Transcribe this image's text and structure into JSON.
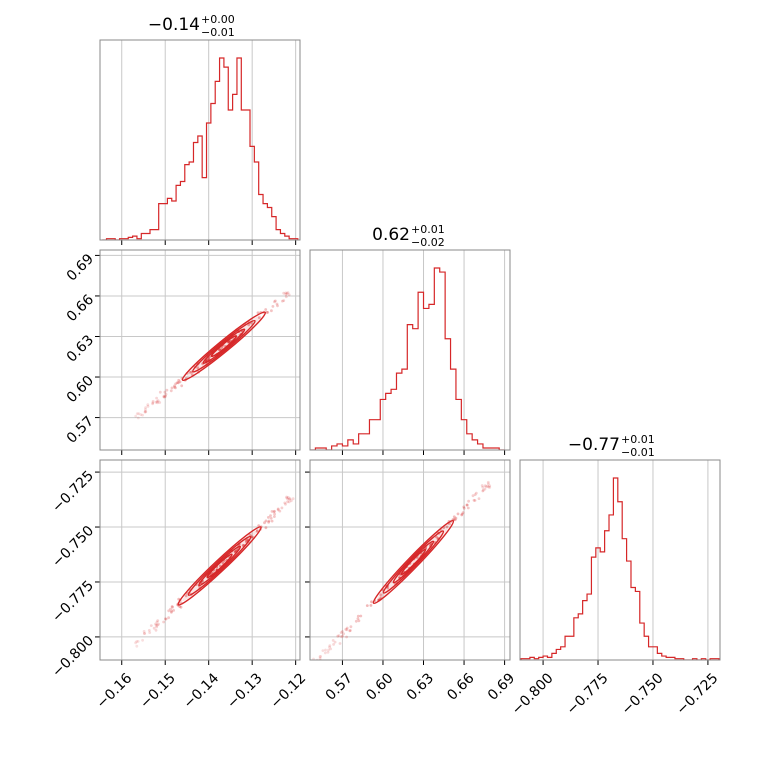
{
  "chart_data": {
    "type": "corner",
    "color": "#d62728",
    "grid": true,
    "parameters": [
      {
        "title": {
          "value": "−0.14",
          "upper": "+0.00",
          "lower": "−0.01"
        },
        "range": [
          -0.165,
          -0.119
        ],
        "ticks": [
          -0.16,
          -0.15,
          -0.14,
          -0.13,
          -0.12
        ],
        "tick_labels": [
          "−0.16",
          "−0.15",
          "−0.14",
          "−0.13",
          "−0.12"
        ],
        "histogram": {
          "x": [
            -0.164,
            -0.163,
            -0.162,
            -0.161,
            -0.16,
            -0.159,
            -0.158,
            -0.157,
            -0.156,
            -0.155,
            -0.154,
            -0.153,
            -0.152,
            -0.151,
            -0.15,
            -0.149,
            -0.148,
            -0.147,
            -0.146,
            -0.145,
            -0.144,
            -0.143,
            -0.142,
            -0.141,
            -0.14,
            -0.139,
            -0.138,
            -0.137,
            -0.136,
            -0.135,
            -0.134,
            -0.133,
            -0.132,
            -0.131,
            -0.13,
            -0.129,
            -0.128,
            -0.127,
            -0.126,
            -0.125,
            -0.124,
            -0.123,
            -0.122,
            -0.121,
            -0.12
          ],
          "counts": [
            0,
            1,
            1,
            0,
            1,
            1,
            2,
            3,
            1,
            5,
            5,
            8,
            8,
            28,
            28,
            32,
            30,
            42,
            45,
            58,
            60,
            75,
            80,
            48,
            90,
            105,
            122,
            140,
            133,
            100,
            112,
            140,
            100,
            100,
            72,
            60,
            35,
            28,
            25,
            18,
            8,
            5,
            3,
            1,
            1
          ]
        }
      },
      {
        "title": {
          "value": "0.62",
          "upper": "+0.01",
          "lower": "−0.02"
        },
        "range": [
          0.546,
          0.694
        ],
        "ticks": [
          0.57,
          0.6,
          0.63,
          0.66,
          0.69
        ],
        "tick_labels": [
          "0.57",
          "0.60",
          "0.63",
          "0.66",
          "0.69"
        ],
        "histogram": {
          "x": [
            0.548,
            0.552,
            0.556,
            0.56,
            0.564,
            0.568,
            0.572,
            0.576,
            0.58,
            0.584,
            0.588,
            0.592,
            0.596,
            0.6,
            0.604,
            0.608,
            0.612,
            0.616,
            0.62,
            0.624,
            0.628,
            0.632,
            0.636,
            0.64,
            0.644,
            0.648,
            0.652,
            0.656,
            0.66,
            0.664,
            0.668,
            0.672,
            0.676,
            0.68,
            0.684,
            0.688
          ],
          "counts": [
            0,
            1,
            1,
            0,
            2,
            3,
            2,
            5,
            3,
            8,
            8,
            15,
            15,
            25,
            28,
            30,
            38,
            40,
            62,
            60,
            78,
            70,
            72,
            90,
            88,
            55,
            40,
            25,
            15,
            8,
            5,
            3,
            1,
            1,
            1,
            0
          ]
        }
      },
      {
        "title": {
          "value": "−0.77",
          "upper": "+0.01",
          "lower": "−0.01"
        },
        "range": [
          -0.8105,
          -0.7195
        ],
        "ticks": [
          -0.8,
          -0.775,
          -0.75,
          -0.725
        ],
        "tick_labels": [
          "−0.800",
          "−0.775",
          "−0.750",
          "−0.725"
        ],
        "histogram": {
          "x": [
            -0.809,
            -0.807,
            -0.805,
            -0.803,
            -0.801,
            -0.799,
            -0.797,
            -0.795,
            -0.793,
            -0.791,
            -0.789,
            -0.787,
            -0.785,
            -0.783,
            -0.781,
            -0.779,
            -0.777,
            -0.775,
            -0.773,
            -0.771,
            -0.769,
            -0.767,
            -0.765,
            -0.763,
            -0.761,
            -0.759,
            -0.757,
            -0.755,
            -0.753,
            -0.751,
            -0.749,
            -0.747,
            -0.745,
            -0.743,
            -0.741,
            -0.739,
            -0.737,
            -0.735,
            -0.733,
            -0.731,
            -0.729,
            -0.727,
            -0.725,
            -0.723,
            -0.721
          ],
          "counts": [
            1,
            1,
            2,
            1,
            2,
            3,
            2,
            5,
            8,
            10,
            18,
            18,
            32,
            35,
            45,
            50,
            78,
            85,
            82,
            98,
            110,
            138,
            120,
            92,
            75,
            55,
            52,
            28,
            18,
            10,
            10,
            5,
            3,
            2,
            2,
            1,
            1,
            0,
            0,
            1,
            0,
            1,
            0,
            1,
            1
          ]
        }
      }
    ],
    "pair_plots": [
      {
        "x_param": 0,
        "y_param": 1,
        "trend": {
          "x": [
            -0.1565,
            -0.1205
          ],
          "y": [
            0.57,
            0.665
          ]
        },
        "core_x": [
          -0.146,
          -0.127
        ],
        "scatter_x": [
          -0.156,
          -0.121
        ]
      },
      {
        "x_param": 0,
        "y_param": 2,
        "trend": {
          "x": [
            -0.157,
            -0.1205
          ],
          "y": [
            -0.804,
            -0.736
          ]
        },
        "core_x": [
          -0.147,
          -0.128
        ],
        "scatter_x": [
          -0.157,
          -0.121
        ]
      },
      {
        "x_param": 1,
        "y_param": 2,
        "trend": {
          "x": [
            0.55,
            0.679
          ],
          "y": [
            -0.812,
            -0.73
          ]
        },
        "core_x": [
          0.593,
          0.652
        ],
        "scatter_x": [
          0.551,
          0.678
        ]
      }
    ]
  }
}
